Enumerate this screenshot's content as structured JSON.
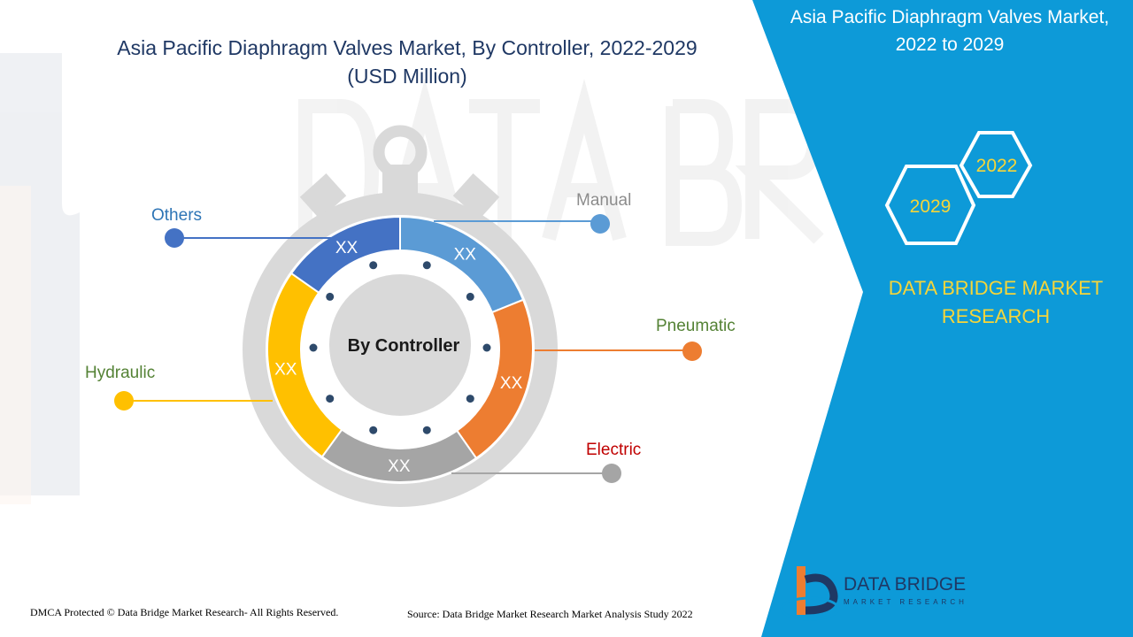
{
  "title": {
    "line1": "Asia Pacific Diaphragm Valves Market, By  Controller, 2022-2029",
    "line2": "(USD Million)"
  },
  "right_panel": {
    "title_line1": "Asia Pacific Diaphragm Valves Market,",
    "title_line2": "2022 to 2029",
    "year_a": "2022",
    "year_b": "2029",
    "brand_line1": "DATA BRIDGE MARKET",
    "brand_line2": "RESEARCH"
  },
  "footer": {
    "left": "DMCA Protected © Data Bridge Market Research- All Rights Reserved.",
    "right": "Source: Data Bridge Market Research Market Analysis Study 2022"
  },
  "logo": {
    "name": "DATA BRIDGE",
    "sub": "MARKET RESEARCH"
  },
  "colors": {
    "panel_blue": "#0d9ad8",
    "gold": "#f5d53a",
    "title_navy": "#1f3864"
  },
  "chart_data": {
    "type": "pie",
    "title": "Asia Pacific Diaphragm Valves Market, By  Controller, 2022-2029 (USD Million)",
    "center_label": "By Controller",
    "segments": [
      {
        "name": "Manual",
        "value_label": "XX",
        "color": "#5b9bd5",
        "label_color": "#8c8c8c"
      },
      {
        "name": "Pneumatic",
        "value_label": "XX",
        "color": "#ed7d31",
        "label_color": "#548235"
      },
      {
        "name": "Electric",
        "value_label": "XX",
        "color": "#a5a5a5",
        "label_color": "#c00000"
      },
      {
        "name": "Hydraulic",
        "value_label": "XX",
        "color": "#ffc000",
        "label_color": "#548235"
      },
      {
        "name": "Others",
        "value_label": "XX",
        "color": "#4472c4",
        "label_color": "#2e75b6"
      }
    ]
  }
}
